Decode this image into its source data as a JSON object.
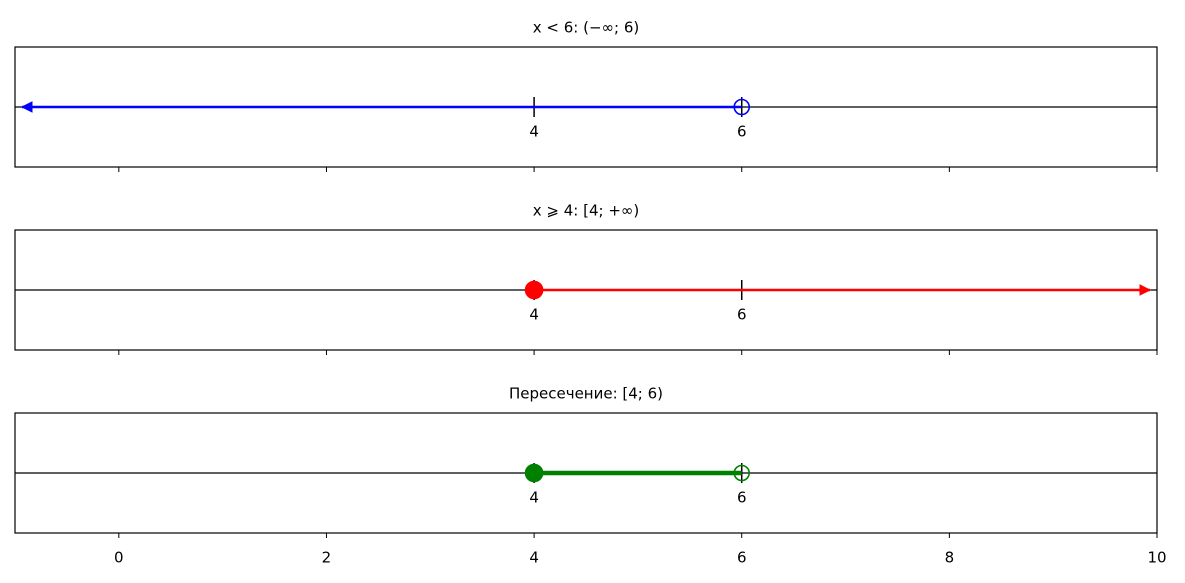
{
  "chart_data": [
    {
      "type": "number-line",
      "title": "x < 6: (−∞; 6)",
      "interval": [
        null,
        6
      ],
      "closed": [
        false,
        false
      ],
      "marks": [
        4,
        6
      ],
      "color": "#0000ff",
      "linewidth": 2.5
    },
    {
      "type": "number-line",
      "title": "x ⩾ 4: [4; +∞)",
      "interval": [
        4,
        null
      ],
      "closed": [
        true,
        false
      ],
      "marks": [
        4,
        6
      ],
      "color": "#ff0000",
      "linewidth": 2.5
    },
    {
      "type": "number-line",
      "title": "Пересечение: [4; 6)",
      "interval": [
        4,
        6
      ],
      "closed": [
        true,
        false
      ],
      "marks": [
        4,
        6
      ],
      "color": "#008000",
      "linewidth": 4.5,
      "xlim": [
        -1,
        10
      ],
      "xticks": [
        0,
        2,
        4,
        6,
        8,
        10
      ]
    }
  ]
}
